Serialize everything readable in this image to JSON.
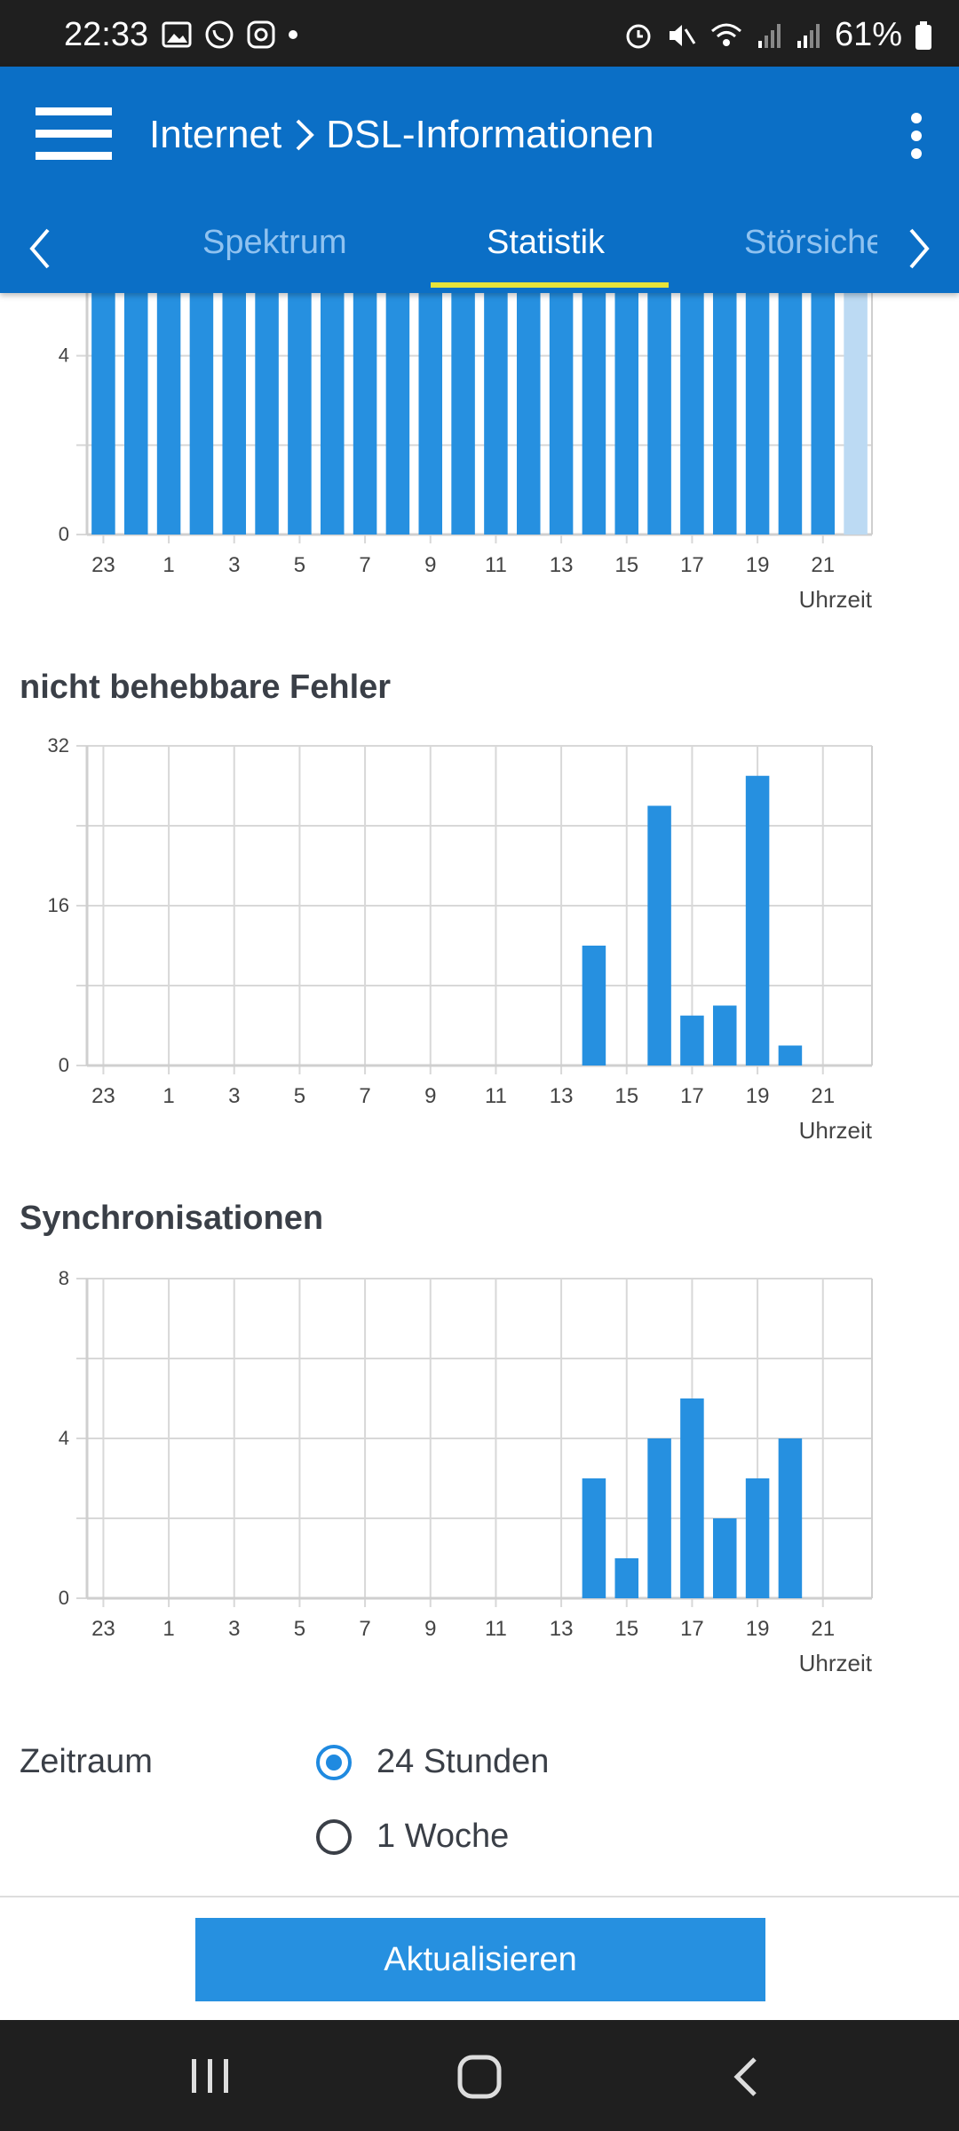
{
  "status_bar": {
    "time": "22:33",
    "battery": "61%"
  },
  "header": {
    "breadcrumb_parent": "Internet",
    "breadcrumb_current": "DSL-Informationen",
    "tabs": [
      {
        "label": "Spektrum",
        "active": false
      },
      {
        "label": "Statistik",
        "active": true
      },
      {
        "label": "Störsiche",
        "active": false
      }
    ]
  },
  "charts": [
    {
      "title": "",
      "xlabel": "Uhrzeit"
    },
    {
      "title": "nicht behebbare Fehler",
      "xlabel": "Uhrzeit"
    },
    {
      "title": "Synchronisationen",
      "xlabel": "Uhrzeit"
    }
  ],
  "chart_data": [
    {
      "type": "bar",
      "title": "",
      "xlabel": "Uhrzeit",
      "x": [
        23,
        0,
        1,
        2,
        3,
        4,
        5,
        6,
        7,
        8,
        9,
        10,
        11,
        12,
        13,
        14,
        15,
        16,
        17,
        18,
        19,
        20,
        21,
        22
      ],
      "values": [
        6,
        6,
        6,
        6,
        6,
        6,
        6,
        6,
        6,
        6,
        6,
        6,
        6,
        6,
        6,
        6,
        6,
        5.9,
        6,
        6,
        6,
        6,
        6,
        6
      ],
      "last_bar_light": true,
      "yticks": [
        0,
        4
      ],
      "xticks": [
        23,
        1,
        3,
        5,
        7,
        9,
        11,
        13,
        15,
        17,
        19,
        21
      ],
      "ylim": [
        0,
        6
      ]
    },
    {
      "type": "bar",
      "title": "nicht behebbare Fehler",
      "xlabel": "Uhrzeit",
      "x": [
        23,
        0,
        1,
        2,
        3,
        4,
        5,
        6,
        7,
        8,
        9,
        10,
        11,
        12,
        13,
        14,
        15,
        16,
        17,
        18,
        19,
        20,
        21,
        22
      ],
      "values": [
        0,
        0,
        0,
        0,
        0,
        0,
        0,
        0,
        0,
        0,
        0,
        0,
        0,
        0,
        0,
        12,
        0,
        26,
        5,
        6,
        29,
        2,
        0,
        0
      ],
      "yticks": [
        0,
        16,
        32
      ],
      "xticks": [
        23,
        1,
        3,
        5,
        7,
        9,
        11,
        13,
        15,
        17,
        19,
        21
      ],
      "ylim": [
        0,
        32
      ]
    },
    {
      "type": "bar",
      "title": "Synchronisationen",
      "xlabel": "Uhrzeit",
      "x": [
        23,
        0,
        1,
        2,
        3,
        4,
        5,
        6,
        7,
        8,
        9,
        10,
        11,
        12,
        13,
        14,
        15,
        16,
        17,
        18,
        19,
        20,
        21,
        22
      ],
      "values": [
        0,
        0,
        0,
        0,
        0,
        0,
        0,
        0,
        0,
        0,
        0,
        0,
        0,
        0,
        0,
        3,
        1,
        4,
        5,
        2,
        3,
        4,
        0,
        0
      ],
      "yticks": [
        0,
        4,
        8
      ],
      "xticks": [
        23,
        1,
        3,
        5,
        7,
        9,
        11,
        13,
        15,
        17,
        19,
        21
      ],
      "ylim": [
        0,
        8
      ]
    }
  ],
  "zeitraum": {
    "label": "Zeitraum",
    "options": [
      {
        "label": "24 Stunden",
        "selected": true
      },
      {
        "label": "1 Woche",
        "selected": false
      }
    ]
  },
  "update_button": "Aktualisieren",
  "colors": {
    "appbar": "#0b6fc6",
    "bar": "#2690e0",
    "bar_light": "#bcdaf3",
    "tab_indicator": "#e8e33a"
  }
}
